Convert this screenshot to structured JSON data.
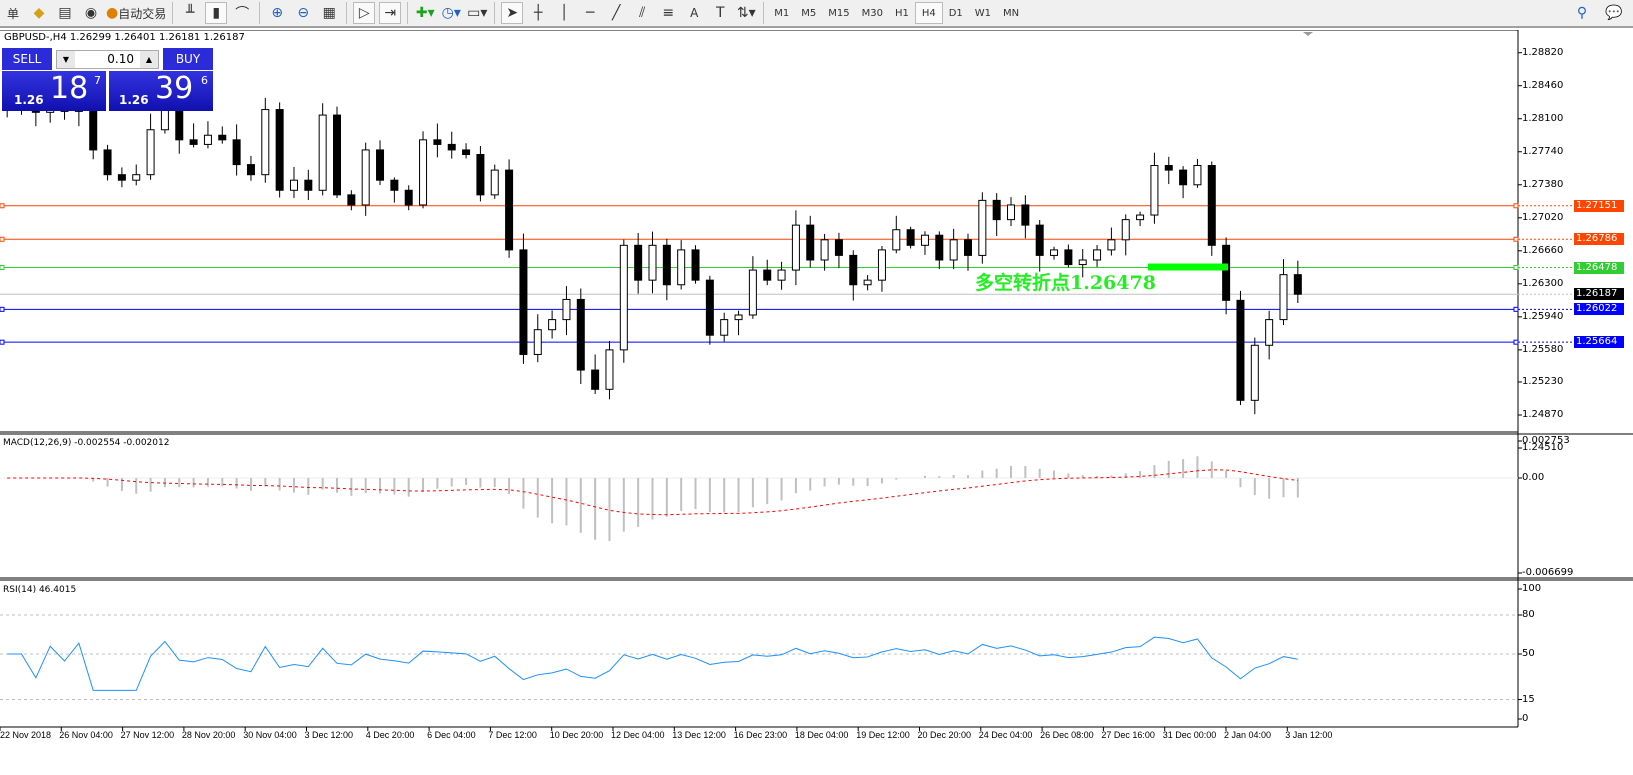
{
  "toolbar": {
    "items": [
      {
        "icon": "orders-icon",
        "label": "单"
      },
      {
        "icon": "gold-icon"
      },
      {
        "icon": "history-center-icon"
      },
      {
        "icon": "signal-icon"
      },
      {
        "icon": "auto-trading-icon",
        "label": "自动交易"
      },
      {
        "icon": "bar-chart-icon"
      },
      {
        "icon": "candlestick-icon",
        "active": true
      },
      {
        "icon": "line-chart-icon"
      },
      {
        "icon": "zoom-in-icon"
      },
      {
        "icon": "zoom-out-icon"
      },
      {
        "icon": "tile-windows-icon"
      },
      {
        "icon": "auto-scroll-icon",
        "active": true
      },
      {
        "icon": "chart-shift-icon",
        "active": true
      },
      {
        "icon": "indicators-icon"
      },
      {
        "icon": "periods-icon"
      },
      {
        "icon": "templates-icon"
      },
      {
        "icon": "cursor-icon",
        "active": true
      },
      {
        "icon": "crosshair-icon"
      },
      {
        "icon": "vertical-line-icon"
      },
      {
        "icon": "horizontal-line-icon"
      },
      {
        "icon": "trendline-icon"
      },
      {
        "icon": "equidistant-channel-icon"
      },
      {
        "icon": "fibonacci-icon"
      },
      {
        "icon": "text-icon",
        "label": "A"
      },
      {
        "icon": "text-label-icon"
      },
      {
        "icon": "arrows-icon"
      }
    ],
    "timeframes": [
      "M1",
      "M5",
      "M15",
      "M30",
      "H1",
      "H4",
      "D1",
      "W1",
      "MN"
    ],
    "active_timeframe": "H4"
  },
  "header": {
    "symbol": "GBPUSD-,H4",
    "ohlc": "1.26299 1.26401 1.26181 1.26187"
  },
  "trade": {
    "sell_label": "SELL",
    "buy_label": "BUY",
    "lot": "0.10",
    "sell": {
      "prefix": "1.26",
      "big": "18",
      "pip": "7"
    },
    "buy": {
      "prefix": "1.26",
      "big": "39",
      "pip": "6"
    }
  },
  "annotation": {
    "text": "多空转折点1.26478",
    "color": "#00ff00"
  },
  "price_axis": [
    "1.28820",
    "1.28460",
    "1.28100",
    "1.27740",
    "1.27380",
    "1.27020",
    "1.26660",
    "1.26300",
    "1.25940",
    "1.25580",
    "1.25230",
    "1.24870",
    "1.24510"
  ],
  "levels": [
    {
      "price": "1.27151",
      "color": "#ff4500"
    },
    {
      "price": "1.26786",
      "color": "#ff4500"
    },
    {
      "price": "1.26478",
      "color": "#32cd32"
    },
    {
      "price": "1.26187",
      "color": "#000000",
      "line": "#c0c0c0"
    },
    {
      "price": "1.26022",
      "color": "#0000ff"
    },
    {
      "price": "1.25664",
      "color": "#0000ff"
    }
  ],
  "macd": {
    "label": "MACD(12,26,9) -0.002554 -0.002012",
    "axis": [
      "0.002753",
      "0.00",
      "-0.006699"
    ]
  },
  "rsi": {
    "label": "RSI(14) 46.4015",
    "axis": [
      "100",
      "80",
      "50",
      "15",
      "0"
    ]
  },
  "time_axis": [
    "22 Nov 2018",
    "26 Nov 04:00",
    "27 Nov 12:00",
    "28 Nov 20:00",
    "30 Nov 04:00",
    "3 Dec 12:00",
    "4 Dec 20:00",
    "6 Dec 04:00",
    "7 Dec 12:00",
    "10 Dec 20:00",
    "12 Dec 04:00",
    "13 Dec 12:00",
    "16 Dec 23:00",
    "18 Dec 04:00",
    "19 Dec 12:00",
    "20 Dec 20:00",
    "24 Dec 04:00",
    "26 Dec 08:00",
    "27 Dec 16:00",
    "31 Dec 00:00",
    "2 Jan 04:00",
    "3 Jan 12:00"
  ],
  "chart_data": {
    "type": "candlestick",
    "symbol": "GBPUSD-",
    "timeframe": "H4",
    "closes": [
      1.2819,
      1.2821,
      1.2817,
      1.282,
      1.2818,
      1.2821,
      1.2776,
      1.2749,
      1.2743,
      1.2749,
      1.2798,
      1.283,
      1.2787,
      1.2782,
      1.2792,
      1.2787,
      1.276,
      1.2749,
      1.282,
      1.2732,
      1.2743,
      1.2732,
      1.2814,
      1.2727,
      1.2716,
      1.2776,
      1.2743,
      1.2732,
      1.2716,
      1.2787,
      1.2782,
      1.2776,
      1.2771,
      1.2727,
      1.2754,
      1.2667,
      1.2553,
      1.258,
      1.2591,
      1.2613,
      1.2536,
      1.2515,
      1.2558,
      1.2672,
      1.2634,
      1.2672,
      1.2629,
      1.2667,
      1.2634,
      1.2574,
      1.2591,
      1.2596,
      1.2645,
      1.2634,
      1.2645,
      1.2694,
      1.2656,
      1.2678,
      1.2661,
      1.2629,
      1.2634,
      1.2667,
      1.2689,
      1.2672,
      1.2683,
      1.2656,
      1.2678,
      1.2661,
      1.2721,
      1.27,
      1.2716,
      1.2694,
      1.2661,
      1.2667,
      1.2651,
      1.2656,
      1.2667,
      1.2678,
      1.27,
      1.2705,
      1.2759,
      1.2754,
      1.2738,
      1.2759,
      1.2672,
      1.2612,
      1.2503,
      1.2563,
      1.2591,
      1.264,
      1.26187
    ],
    "y_range": [
      1.2451,
      1.29
    ]
  }
}
